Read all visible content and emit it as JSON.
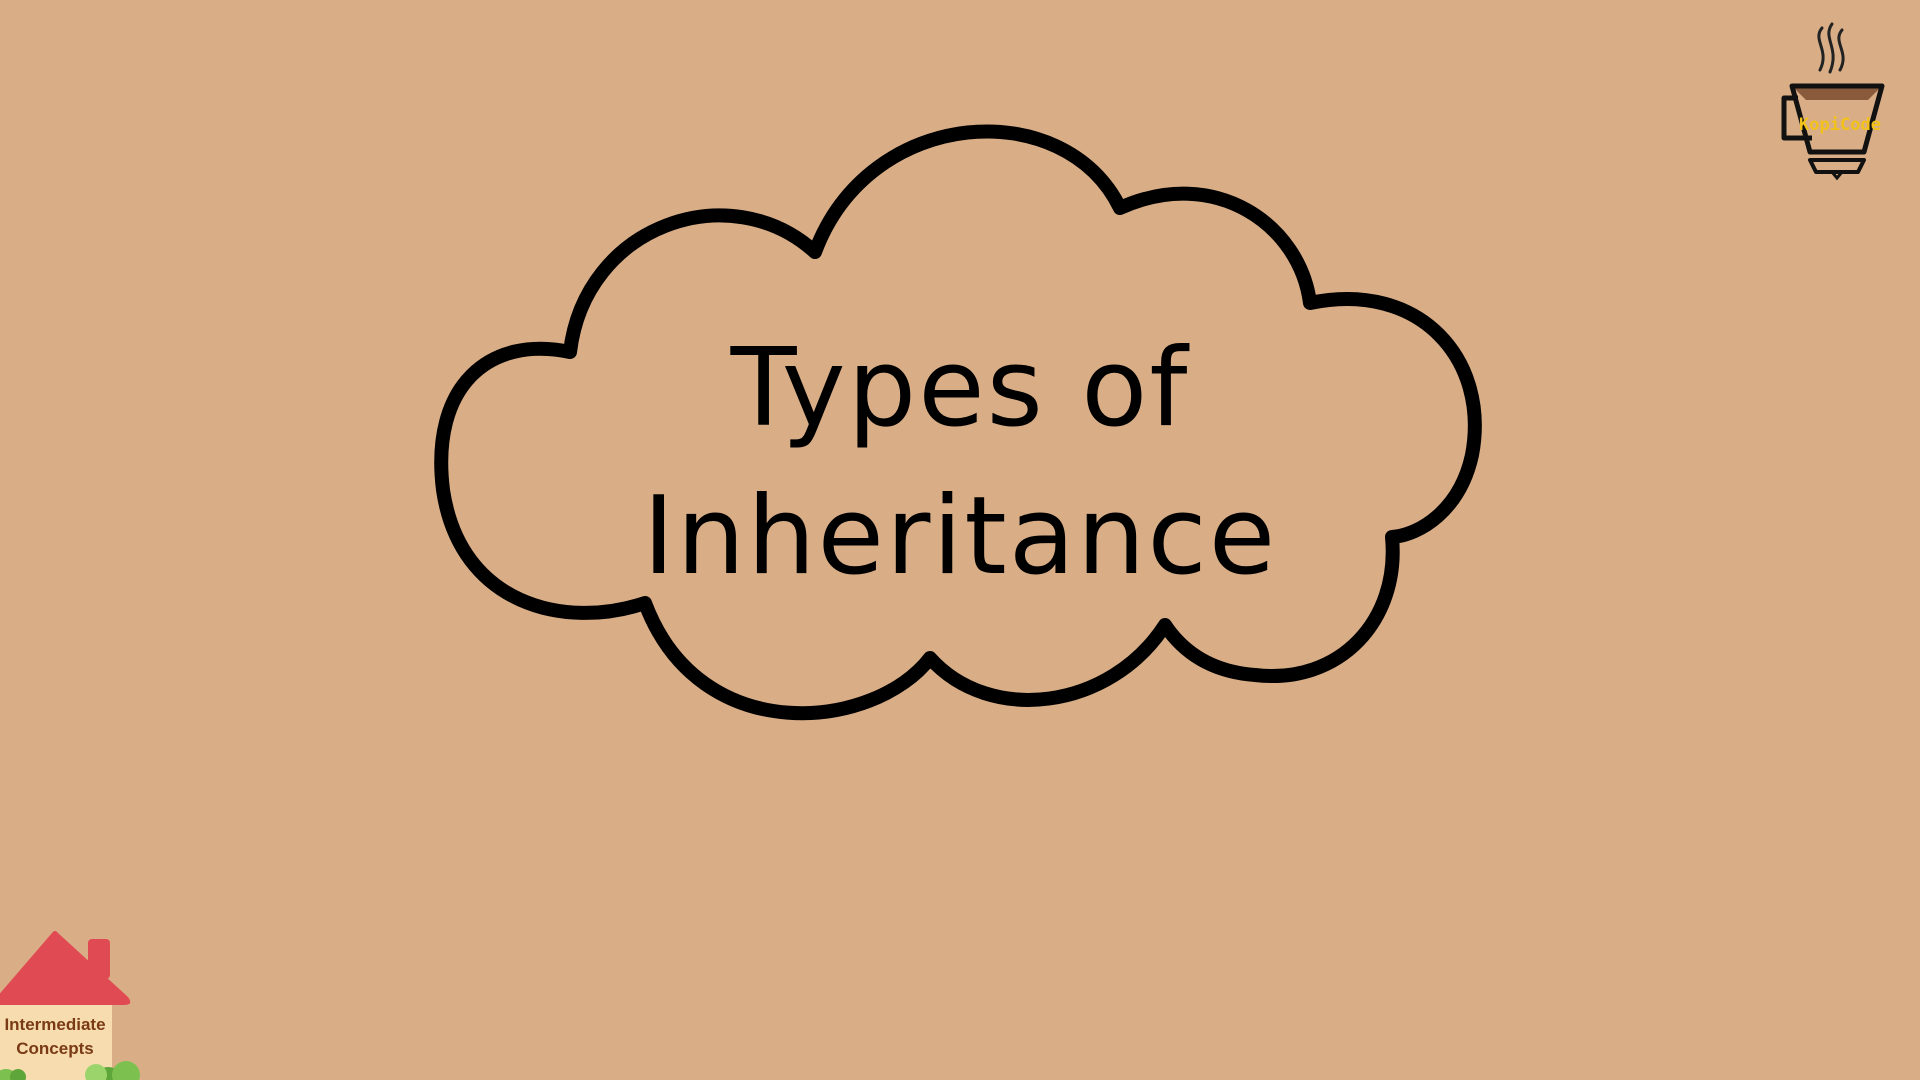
{
  "slide": {
    "title_line1": "Types of",
    "title_line2": "Inheritance"
  },
  "logo": {
    "text": "KopiCode",
    "icon": "coffee-cup-icon"
  },
  "badge": {
    "line1": "Intermediate",
    "line2": "Concepts",
    "icon": "house-icon"
  },
  "colors": {
    "background": "#d9ae87",
    "outline": "#000000",
    "roof": "#e04a52",
    "wall": "#f6dcae",
    "bush": "#7cc04f",
    "logo_text": "#f2c21a"
  }
}
